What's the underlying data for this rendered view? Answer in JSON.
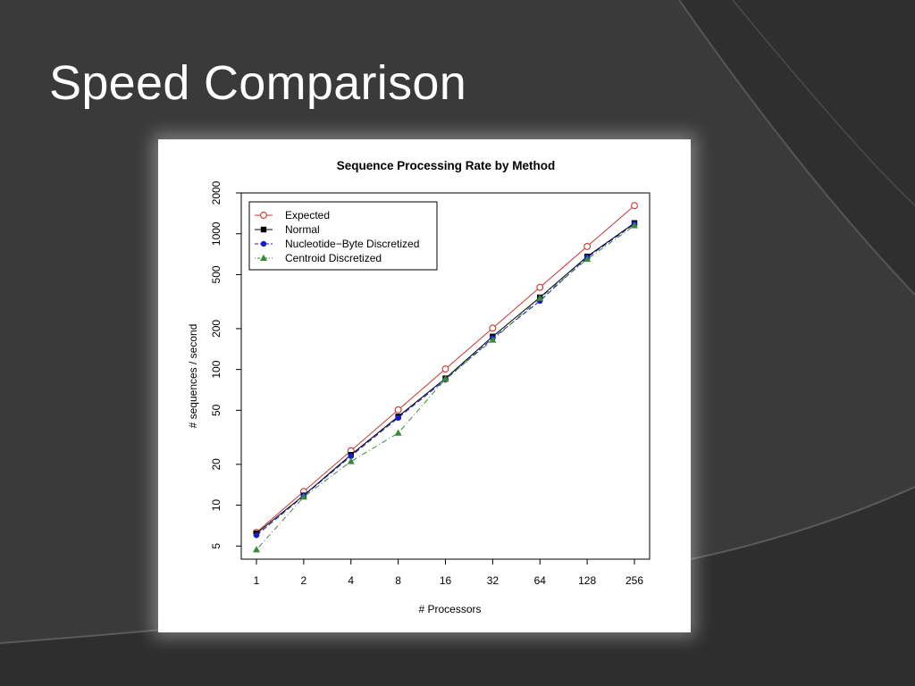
{
  "slide": {
    "title": "Speed Comparison"
  },
  "chart_data": {
    "type": "line",
    "title": "Sequence Processing Rate by Method",
    "xlabel": "# Processors",
    "ylabel": "# sequences / second",
    "x_scale": "log2",
    "y_scale": "log10",
    "categories": [
      "1",
      "2",
      "4",
      "8",
      "16",
      "32",
      "64",
      "128",
      "256"
    ],
    "x": [
      1,
      2,
      4,
      8,
      16,
      32,
      64,
      128,
      256
    ],
    "xlim": [
      1,
      256
    ],
    "ylim": [
      4,
      2000
    ],
    "yticks": [
      5,
      10,
      20,
      50,
      100,
      200,
      500,
      1000,
      2000
    ],
    "legend_position": "top-left",
    "series": [
      {
        "name": "Expected",
        "color": "#cc3333",
        "marker": "open-circle",
        "line": "solid",
        "values": [
          6.3,
          12.6,
          25.2,
          50.4,
          100.8,
          201.6,
          403.2,
          806.4,
          1612.8
        ]
      },
      {
        "name": "Normal",
        "color": "#000000",
        "marker": "square",
        "line": "solid",
        "values": [
          6.2,
          11.8,
          23.5,
          45,
          86,
          175,
          340,
          680,
          1200
        ]
      },
      {
        "name": "Nucleotide−Byte Discretized",
        "color": "#1a1acc",
        "marker": "dot",
        "line": "dashed",
        "values": [
          6.0,
          11.7,
          23,
          44,
          84,
          170,
          320,
          670,
          1180
        ]
      },
      {
        "name": "Centroid Discretized",
        "color": "#3a8a3a",
        "marker": "triangle",
        "line": "dotdash",
        "values": [
          4.7,
          11.5,
          21,
          34,
          85,
          165,
          335,
          650,
          1150
        ]
      }
    ]
  }
}
